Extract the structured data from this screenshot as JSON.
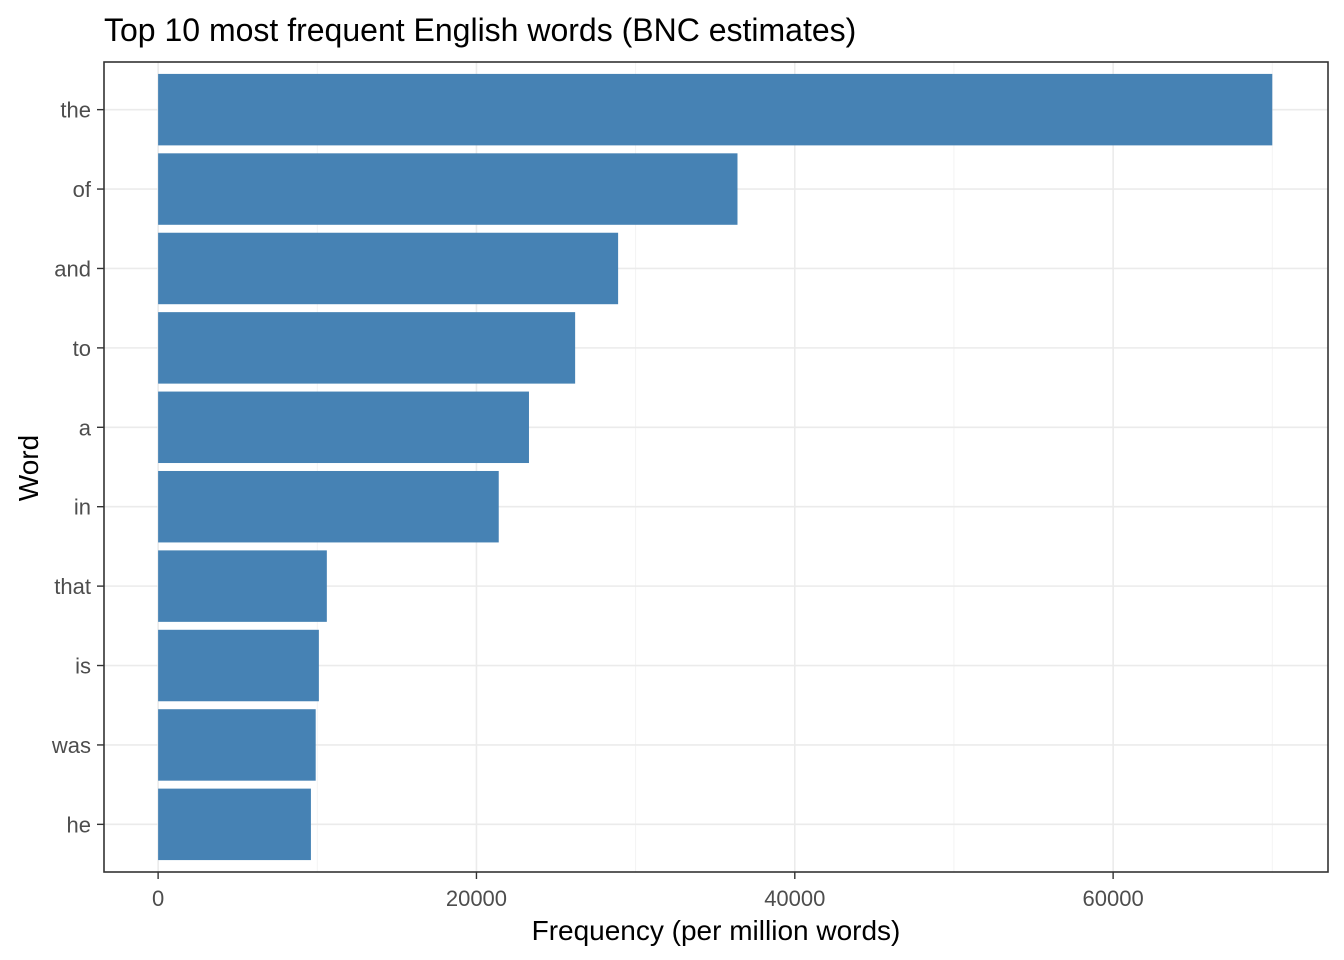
{
  "chart_data": {
    "type": "bar",
    "orientation": "horizontal",
    "title": "Top 10 most frequent English words (BNC estimates)",
    "xlabel": "Frequency (per million words)",
    "ylabel": "Word",
    "categories": [
      "the",
      "of",
      "and",
      "to",
      "a",
      "in",
      "that",
      "is",
      "was",
      "he"
    ],
    "values": [
      70000,
      36400,
      28900,
      26200,
      23300,
      21400,
      10600,
      10100,
      9900,
      9600
    ],
    "xlim": [
      -3400,
      73500
    ],
    "xticks": [
      0,
      20000,
      40000,
      60000
    ],
    "xtick_labels": [
      "0",
      "20000",
      "40000",
      "60000"
    ],
    "grid": true,
    "bar_color": "#4682b4"
  }
}
